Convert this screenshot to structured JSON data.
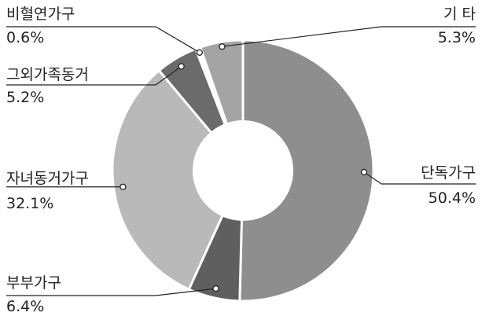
{
  "chart_data": {
    "type": "pie",
    "variant": "donut",
    "title": "",
    "legend": "none",
    "slices": [
      {
        "label": "단독가구",
        "value": 50.4,
        "value_label": "50.4%",
        "color": "#8e8e8e"
      },
      {
        "label": "부부가구",
        "value": 6.4,
        "value_label": "6.4%",
        "color": "#5f5f5f"
      },
      {
        "label": "자녀동거가구",
        "value": 32.1,
        "value_label": "32.1%",
        "color": "#b9b9b9"
      },
      {
        "label": "그외가족동거",
        "value": 5.2,
        "value_label": "5.2%",
        "color": "#6b6b6b"
      },
      {
        "label": "비혈연가구",
        "value": 0.6,
        "value_label": "0.6%",
        "color": "#ffffff"
      },
      {
        "label": "기 타",
        "value": 5.3,
        "value_label": "5.3%",
        "color": "#a4a4a4"
      }
    ]
  },
  "colors": {
    "separator": "#ffffff",
    "leader_line": "#222222",
    "text": "#222222"
  }
}
